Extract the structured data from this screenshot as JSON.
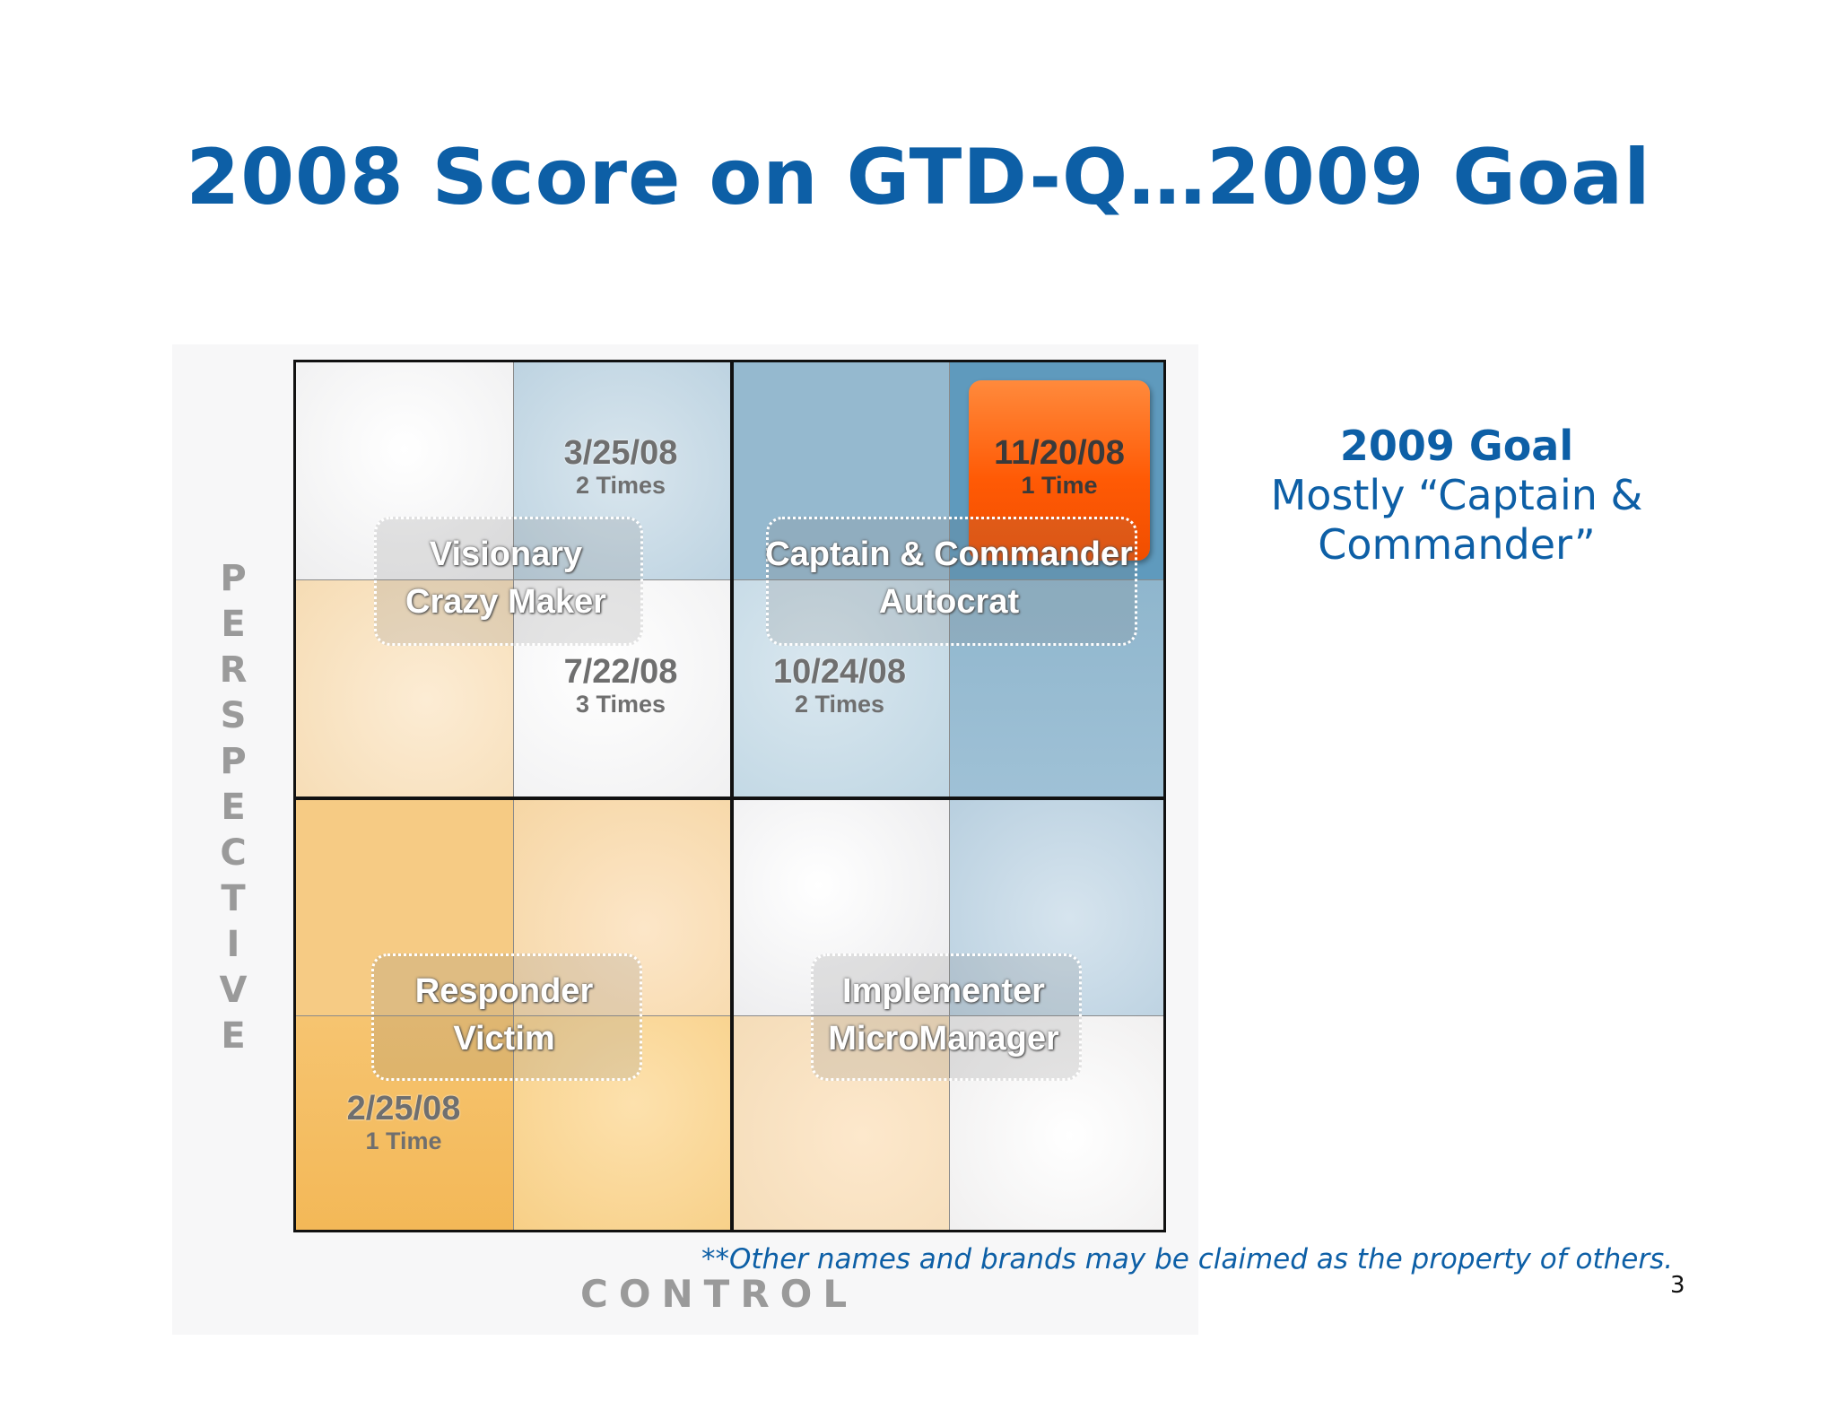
{
  "title": "2008 Score on GTD-Q…2009 Goal",
  "quadrant_labels": {
    "top_left": [
      "Visionary",
      "Crazy Maker"
    ],
    "top_right": [
      "Captain & Commander",
      "Autocrat"
    ],
    "bottom_left": [
      "Responder",
      "Victim"
    ],
    "bottom_right": [
      "Implementer",
      "MicroManager"
    ]
  },
  "scores": [
    {
      "date": "3/25/08",
      "times": "2 Times"
    },
    {
      "date": "11/20/08",
      "times": "1 Time"
    },
    {
      "date": "7/22/08",
      "times": "3 Times"
    },
    {
      "date": "10/24/08",
      "times": "2 Times"
    },
    {
      "date": "2/25/08",
      "times": "1 Time"
    }
  ],
  "axis": {
    "y_letters": [
      "P",
      "E",
      "R",
      "S",
      "P",
      "E",
      "C",
      "T",
      "I",
      "V",
      "E"
    ],
    "x": "CONTROL"
  },
  "goal": {
    "title": "2009 Goal",
    "line1": "Mostly “Captain &",
    "line2": "Commander”"
  },
  "footnote": "**Other names and brands may be claimed as the property of others.",
  "page_number": "3",
  "colors": {
    "title_blue": "#0d5fa6",
    "highlight_orange": "#ff5a05"
  }
}
